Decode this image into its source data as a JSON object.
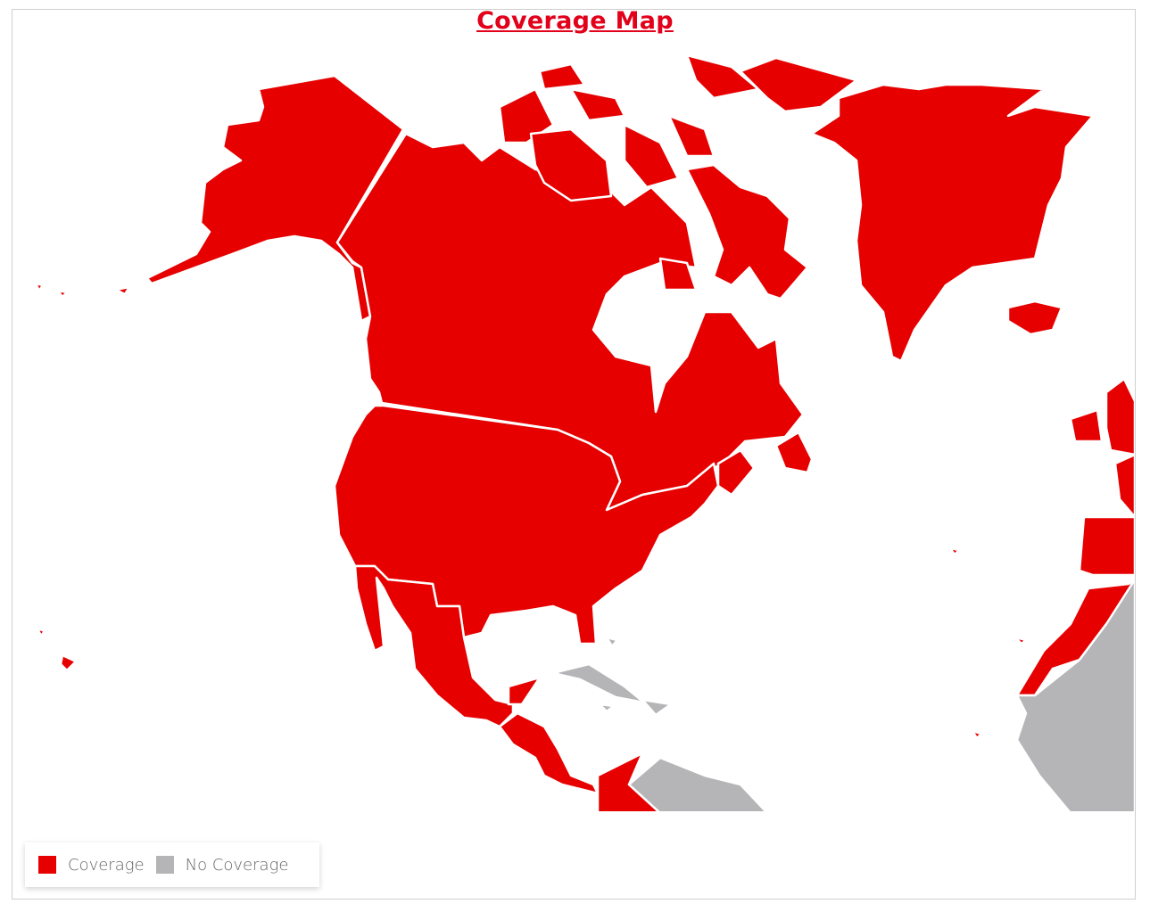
{
  "title": "Coverage Map",
  "legend": {
    "items": [
      {
        "label": "Coverage",
        "color": "#e60000"
      },
      {
        "label": "No Coverage",
        "color": "#b5b5b8"
      }
    ]
  },
  "colors": {
    "coverage": "#e60000",
    "no_coverage": "#b5b5b8",
    "border": "#ffffff"
  },
  "regions": {
    "coverage": [
      "Alaska",
      "Canada",
      "Canadian Arctic Islands",
      "United States",
      "Mexico",
      "Central America",
      "Colombia",
      "Greenland",
      "Iceland",
      "United Kingdom",
      "Ireland",
      "France",
      "Spain",
      "Portugal",
      "Morocco",
      "Western Sahara",
      "Hawaii",
      "Azores",
      "Canary Islands",
      "Cape Verde"
    ],
    "no_coverage": [
      "Cuba",
      "Hispaniola",
      "Jamaica",
      "Bahamas",
      "Venezuela",
      "South America",
      "West Africa"
    ]
  }
}
